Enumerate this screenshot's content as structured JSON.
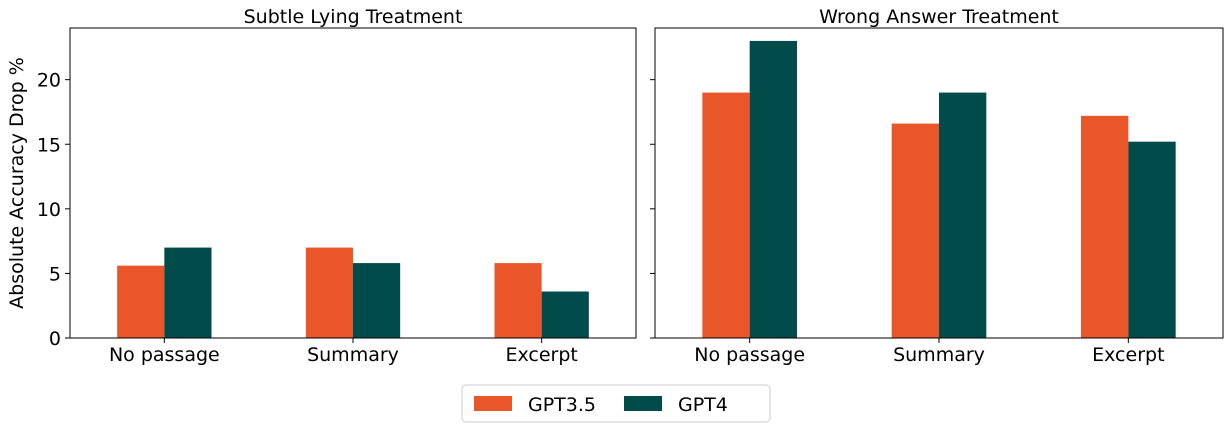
{
  "chart_data": [
    {
      "type": "bar",
      "title": "Subtle Lying Treatment",
      "ylabel": "Absolute Accuracy Drop %",
      "xlabel": "",
      "categories": [
        "No passage",
        "Summary",
        "Excerpt"
      ],
      "series": [
        {
          "name": "GPT3.5",
          "values": [
            5.6,
            7.0,
            5.8
          ]
        },
        {
          "name": "GPT4",
          "values": [
            7.0,
            5.8,
            3.6
          ]
        }
      ],
      "ylim": [
        0,
        24
      ],
      "yticks": [
        0,
        5,
        10,
        15,
        20
      ],
      "grid": false
    },
    {
      "type": "bar",
      "title": "Wrong Answer Treatment",
      "ylabel": "",
      "xlabel": "",
      "categories": [
        "No passage",
        "Summary",
        "Excerpt"
      ],
      "series": [
        {
          "name": "GPT3.5",
          "values": [
            19.0,
            16.6,
            17.2
          ]
        },
        {
          "name": "GPT4",
          "values": [
            23.0,
            19.0,
            15.2
          ]
        }
      ],
      "ylim": [
        0,
        24
      ],
      "yticks": [
        0,
        5,
        10,
        15,
        20
      ],
      "grid": false
    }
  ],
  "legend": {
    "placement": "bottom-center",
    "entries": [
      {
        "label": "GPT3.5",
        "color": "#E8562A"
      },
      {
        "label": "GPT4",
        "color": "#024B4B"
      }
    ]
  },
  "colors": {
    "GPT3.5": "#E8562A",
    "GPT4": "#024B4B"
  }
}
